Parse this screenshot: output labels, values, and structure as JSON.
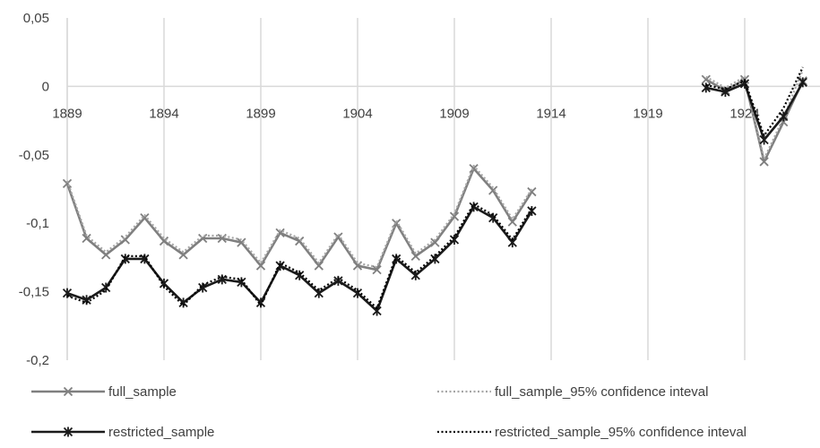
{
  "chart_data": {
    "type": "line",
    "title": "",
    "xlabel": "",
    "ylabel": "",
    "xlim": [
      1889,
      1927
    ],
    "ylim": [
      -0.2,
      0.05
    ],
    "x_ticks": [
      "1889",
      "1894",
      "1899",
      "1904",
      "1909",
      "1914",
      "1919",
      "1924"
    ],
    "y_ticks": [
      "0,05",
      "0",
      "-0,05",
      "-0,1",
      "-0,15",
      "-0,2"
    ],
    "grid": "vertical",
    "legend_position": "bottom",
    "series": [
      {
        "name": "full_sample",
        "color": "#7f7f7f",
        "style": "solid-x-markers",
        "x": [
          1889,
          1890,
          1891,
          1892,
          1893,
          1894,
          1895,
          1896,
          1897,
          1898,
          1899,
          1900,
          1901,
          1902,
          1903,
          1904,
          1905,
          1906,
          1907,
          1908,
          1909,
          1910,
          1911,
          1912,
          1913,
          1922,
          1923,
          1924,
          1925,
          1926,
          1927
        ],
        "y": [
          -0.071,
          -0.111,
          -0.123,
          -0.112,
          -0.096,
          -0.113,
          -0.123,
          -0.111,
          -0.111,
          -0.114,
          -0.131,
          -0.107,
          -0.113,
          -0.131,
          -0.11,
          -0.131,
          -0.134,
          -0.1,
          -0.124,
          -0.114,
          -0.095,
          -0.06,
          -0.076,
          -0.099,
          -0.077,
          0.005,
          -0.003,
          0.005,
          -0.055,
          -0.026,
          0.004
        ]
      },
      {
        "name": "full_sample_95% confidence inteval",
        "color": "#a6a6a6",
        "style": "dotted",
        "x": [
          1889,
          1890,
          1891,
          1892,
          1893,
          1894,
          1895,
          1896,
          1897,
          1898,
          1899,
          1900,
          1901,
          1902,
          1903,
          1904,
          1905,
          1906,
          1907,
          1908,
          1909,
          1910,
          1911,
          1912,
          1913,
          1922,
          1923,
          1924,
          1925,
          1926,
          1927
        ],
        "y": [
          -0.069,
          -0.109,
          -0.121,
          -0.11,
          -0.094,
          -0.111,
          -0.121,
          -0.109,
          -0.109,
          -0.112,
          -0.129,
          -0.105,
          -0.111,
          -0.129,
          -0.108,
          -0.129,
          -0.132,
          -0.098,
          -0.122,
          -0.112,
          -0.093,
          -0.058,
          -0.074,
          -0.097,
          -0.075,
          0.007,
          -0.001,
          0.007,
          -0.053,
          -0.023,
          0.012
        ]
      },
      {
        "name": "restricted_sample",
        "color": "#1a1a1a",
        "style": "solid-star-markers",
        "x": [
          1889,
          1890,
          1891,
          1892,
          1893,
          1894,
          1895,
          1896,
          1897,
          1898,
          1899,
          1900,
          1901,
          1902,
          1903,
          1904,
          1905,
          1906,
          1907,
          1908,
          1909,
          1910,
          1911,
          1912,
          1913,
          1922,
          1923,
          1924,
          1925,
          1926,
          1927
        ],
        "y": [
          -0.151,
          -0.156,
          -0.147,
          -0.126,
          -0.126,
          -0.144,
          -0.158,
          -0.147,
          -0.141,
          -0.143,
          -0.158,
          -0.131,
          -0.138,
          -0.151,
          -0.142,
          -0.151,
          -0.164,
          -0.126,
          -0.138,
          -0.126,
          -0.112,
          -0.088,
          -0.096,
          -0.114,
          -0.091,
          -0.001,
          -0.004,
          0.002,
          -0.039,
          -0.022,
          0.003
        ]
      },
      {
        "name": "restricted_sample_95% confidence inteval",
        "color": "#000000",
        "style": "dotted",
        "x": [
          1889,
          1890,
          1891,
          1892,
          1893,
          1894,
          1895,
          1896,
          1897,
          1898,
          1899,
          1900,
          1901,
          1902,
          1903,
          1904,
          1905,
          1906,
          1907,
          1908,
          1909,
          1910,
          1911,
          1912,
          1913,
          1922,
          1923,
          1924,
          1925,
          1926,
          1927
        ],
        "y": [
          -0.153,
          -0.158,
          -0.149,
          -0.124,
          -0.124,
          -0.146,
          -0.16,
          -0.145,
          -0.139,
          -0.141,
          -0.16,
          -0.129,
          -0.136,
          -0.149,
          -0.14,
          -0.149,
          -0.162,
          -0.124,
          -0.136,
          -0.124,
          -0.11,
          -0.086,
          -0.094,
          -0.112,
          -0.089,
          0.001,
          -0.002,
          0.004,
          -0.036,
          -0.016,
          0.014
        ]
      }
    ]
  }
}
